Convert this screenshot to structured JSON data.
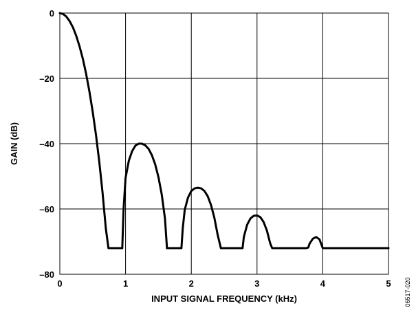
{
  "chart_data": {
    "type": "line",
    "xlabel": "INPUT SIGNAL FREQUENCY (kHz)",
    "ylabel": "GAIN (dB)",
    "xlim": [
      0,
      5
    ],
    "ylim": [
      -80,
      0
    ],
    "grid": true,
    "x_ticks": [
      0,
      1,
      2,
      3,
      4,
      5
    ],
    "x_tick_labels": [
      "0",
      "1",
      "2",
      "3",
      "4",
      "5"
    ],
    "y_ticks": [
      0,
      -20,
      -40,
      -60,
      -80
    ],
    "y_tick_labels": [
      "0",
      "–20",
      "–40",
      "–60",
      "–80"
    ],
    "series": [
      {
        "color": "#000000",
        "x": [
          0,
          0.05,
          0.1,
          0.15,
          0.2,
          0.25,
          0.3,
          0.35,
          0.4,
          0.45,
          0.5,
          0.55,
          0.6,
          0.65,
          0.7,
          0.74,
          0.77,
          0.8,
          0.82,
          0.84,
          0.9,
          0.93,
          0.95,
          0.97,
          1.0,
          1.05,
          1.1,
          1.15,
          1.2,
          1.25,
          1.3,
          1.35,
          1.4,
          1.45,
          1.5,
          1.55,
          1.6,
          1.63,
          1.65,
          1.7,
          1.8,
          1.85,
          1.87,
          1.9,
          1.95,
          2.0,
          2.05,
          2.1,
          2.15,
          2.2,
          2.25,
          2.3,
          2.35,
          2.4,
          2.45,
          2.5,
          2.6,
          2.7,
          2.76,
          2.78,
          2.8,
          2.85,
          2.9,
          2.95,
          3.0,
          3.05,
          3.1,
          3.15,
          3.2,
          3.23,
          3.25,
          3.4,
          3.6,
          3.75,
          3.78,
          3.8,
          3.85,
          3.9,
          3.95,
          4.0,
          4.1,
          4.5,
          5.0
        ],
        "values": [
          0,
          -0.3,
          -1.1,
          -2.5,
          -4.4,
          -7.0,
          -10.2,
          -14.0,
          -18.6,
          -24.0,
          -30.2,
          -37.3,
          -45.5,
          -55.0,
          -66.0,
          -72,
          -72,
          -72,
          -72,
          -72,
          -72,
          -72,
          -72,
          -60.0,
          -50.5,
          -45.2,
          -42.3,
          -40.6,
          -40.0,
          -40.0,
          -40.5,
          -41.6,
          -43.5,
          -46.3,
          -50.2,
          -55.5,
          -63.0,
          -72,
          -72,
          -72,
          -72,
          -72,
          -66.0,
          -60.3,
          -56.5,
          -54.5,
          -53.7,
          -53.5,
          -53.7,
          -54.5,
          -56.1,
          -58.8,
          -62.6,
          -67.8,
          -72,
          -72,
          -72,
          -72,
          -72,
          -72,
          -68.5,
          -64.8,
          -62.9,
          -62.1,
          -62.0,
          -62.5,
          -64.0,
          -66.6,
          -70.5,
          -72,
          -72,
          -72,
          -72,
          -72,
          -71.8,
          -70.6,
          -69.1,
          -68.6,
          -69.3,
          -72,
          -72,
          -72,
          -72
        ]
      }
    ]
  },
  "figure_id": "06517-020"
}
